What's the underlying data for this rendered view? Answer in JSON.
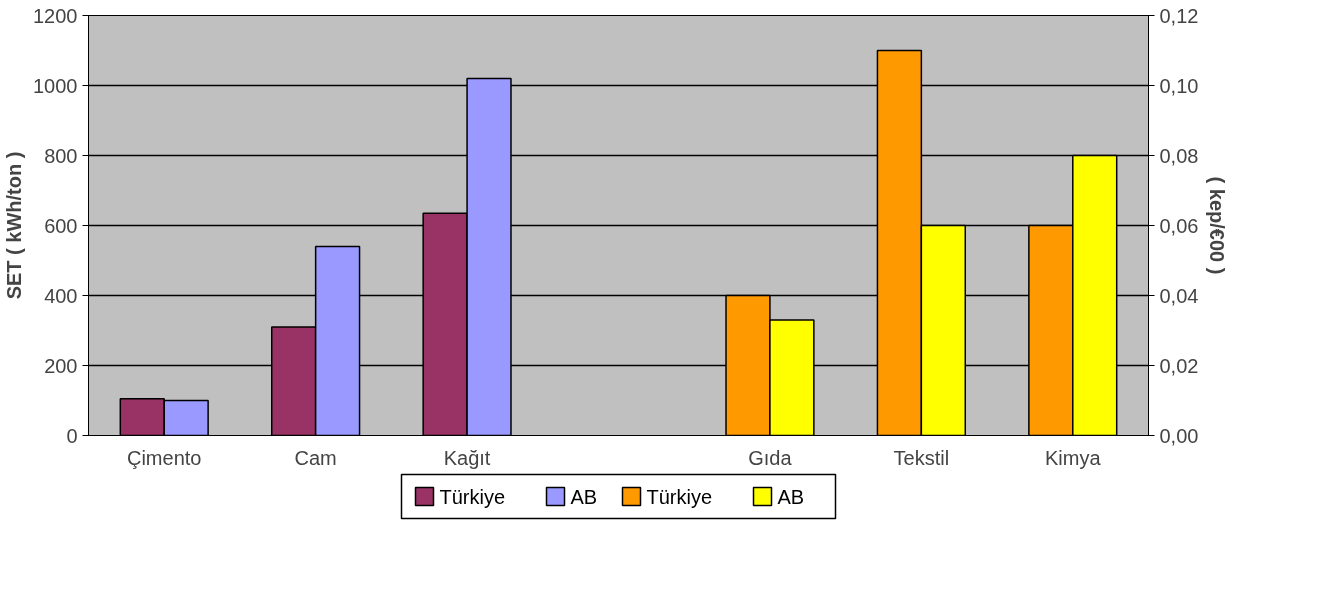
{
  "chart_data": {
    "type": "bar",
    "ylabel": "SET ( kWh/ton )",
    "y2label": "( kep/€00 )",
    "categories": [
      "Çimento",
      "Cam",
      "Kağıt",
      null,
      "Gıda",
      "Tekstil",
      "Kimya"
    ],
    "series": [
      {
        "name": "Türkiye",
        "color": "#993366",
        "values": [
          105,
          310,
          635,
          null,
          null,
          null,
          null
        ]
      },
      {
        "name": "AB",
        "color": "#9999ff",
        "values": [
          100,
          540,
          1020,
          null,
          null,
          null,
          null
        ]
      },
      {
        "name": "Türkiye",
        "color": "#ff9900",
        "axis": "y2",
        "values": [
          null,
          null,
          null,
          null,
          0.04,
          0.11,
          0.06
        ]
      },
      {
        "name": "AB",
        "color": "#ffff00",
        "axis": "y2",
        "values": [
          null,
          null,
          null,
          null,
          0.033,
          0.06,
          0.08
        ]
      }
    ],
    "ylim": [
      0,
      1200
    ],
    "yticks": [
      0,
      200,
      400,
      600,
      800,
      1000,
      1200
    ],
    "y2lim": [
      0,
      0.12
    ],
    "y2ticks": [
      {
        "value": 0,
        "label": "0,00"
      },
      {
        "value": 0.02,
        "label": "0,02"
      },
      {
        "value": 0.04,
        "label": "0,04"
      },
      {
        "value": 0.06,
        "label": "0,06"
      },
      {
        "value": 0.08,
        "label": "0,08"
      },
      {
        "value": 0.1,
        "label": "0,10"
      },
      {
        "value": 0.12,
        "label": "0,12"
      }
    ],
    "grid": "y",
    "legend": "bottom"
  }
}
